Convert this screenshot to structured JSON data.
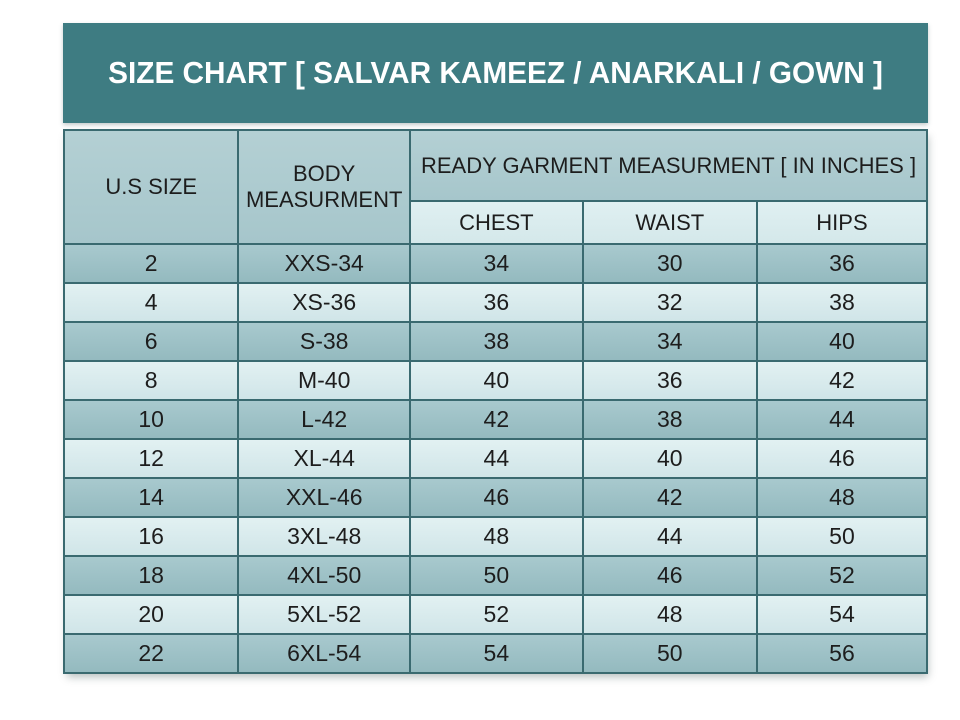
{
  "title": "SIZE CHART [ SALVAR KAMEEZ / ANARKALI / GOWN ]",
  "table": {
    "group_header": "READY GARMENT MEASURMENT [ IN INCHES ]",
    "columns": [
      {
        "key": "us_size",
        "label": "U.S SIZE"
      },
      {
        "key": "body",
        "label": "BODY MEASURMENT"
      },
      {
        "key": "chest",
        "label": "CHEST"
      },
      {
        "key": "waist",
        "label": "WAIST"
      },
      {
        "key": "hips",
        "label": "HIPS"
      }
    ],
    "rows": [
      {
        "us_size": "2",
        "body": "XXS-34",
        "chest": "34",
        "waist": "30",
        "hips": "36"
      },
      {
        "us_size": "4",
        "body": "XS-36",
        "chest": "36",
        "waist": "32",
        "hips": "38"
      },
      {
        "us_size": "6",
        "body": "S-38",
        "chest": "38",
        "waist": "34",
        "hips": "40"
      },
      {
        "us_size": "8",
        "body": "M-40",
        "chest": "40",
        "waist": "36",
        "hips": "42"
      },
      {
        "us_size": "10",
        "body": "L-42",
        "chest": "42",
        "waist": "38",
        "hips": "44"
      },
      {
        "us_size": "12",
        "body": "XL-44",
        "chest": "44",
        "waist": "40",
        "hips": "46"
      },
      {
        "us_size": "14",
        "body": "XXL-46",
        "chest": "46",
        "waist": "42",
        "hips": "48"
      },
      {
        "us_size": "16",
        "body": "3XL-48",
        "chest": "48",
        "waist": "44",
        "hips": "50"
      },
      {
        "us_size": "18",
        "body": "4XL-50",
        "chest": "50",
        "waist": "46",
        "hips": "52"
      },
      {
        "us_size": "20",
        "body": "5XL-52",
        "chest": "52",
        "waist": "48",
        "hips": "54"
      },
      {
        "us_size": "22",
        "body": "6XL-54",
        "chest": "54",
        "waist": "50",
        "hips": "56"
      }
    ]
  },
  "colors": {
    "title_band": "#3e7c82",
    "header_cell": "#adcbd0",
    "subheader_cell": "#d9ecee",
    "row_dark": "#9cc0c5",
    "row_light": "#d7eaec",
    "border": "#3a6a70",
    "title_text": "#ffffff",
    "body_text": "#1d1d1d",
    "page_background": "#ffffff"
  }
}
